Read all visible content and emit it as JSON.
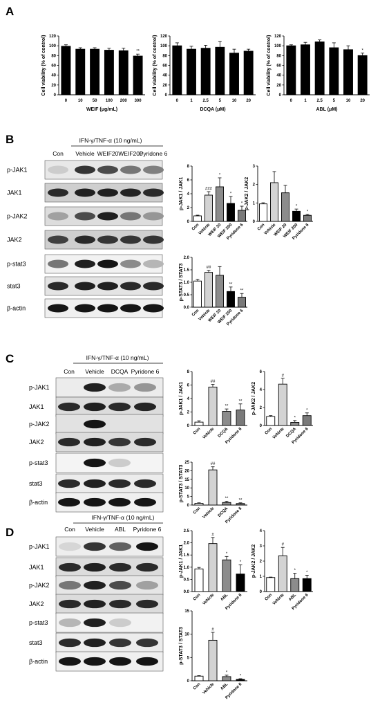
{
  "panels": {
    "A": {
      "label": "A"
    },
    "B": {
      "label": "B",
      "treatment": "IFN-γ/TNF-α (10 ng/mL)",
      "lanes": [
        "Con",
        "Vehicle",
        "WEIF20",
        "WEIF200",
        "Pyridone 6"
      ],
      "rows": [
        "p-JAK1",
        "JAK1",
        "p-JAK2",
        "JAK2",
        "p-stat3",
        "stat3",
        "β-actin"
      ]
    },
    "C": {
      "label": "C",
      "treatment": "IFN-γ/TNF-α (10 ng/mL)",
      "lanes": [
        "Con",
        "Vehicle",
        "DCQA",
        "Pyridone 6"
      ],
      "rows": [
        "p-JAK1",
        "JAK1",
        "p-JAK2",
        "JAK2",
        "p-stat3",
        "stat3",
        "β-actin"
      ]
    },
    "D": {
      "label": "D",
      "treatment": "IFN-γ/TNF-α (10 ng/mL)",
      "lanes": [
        "Con",
        "Vehicle",
        "ABL",
        "Pyridone 6"
      ],
      "rows": [
        "p-JAK1",
        "JAK1",
        "p-JAK2",
        "JAK2",
        "p-stat3",
        "stat3",
        "β-actin"
      ]
    }
  },
  "chart_data": [
    {
      "id": "A1",
      "type": "bar",
      "categories": [
        "0",
        "10",
        "50",
        "100",
        "200",
        "300"
      ],
      "values": [
        99,
        93,
        93,
        91,
        90,
        79
      ],
      "errors": [
        3,
        3,
        3,
        4,
        5,
        4
      ],
      "sig": [
        "",
        "",
        "",
        "",
        "",
        "**"
      ],
      "colors": [
        "#000",
        "#000",
        "#000",
        "#000",
        "#000",
        "#000"
      ],
      "xlabel": "WEIF (μg/mL)",
      "ylabel": "Cell viability (% of control)",
      "ylim": [
        0,
        120
      ],
      "yticks": [
        0,
        20,
        40,
        60,
        80,
        100,
        120
      ]
    },
    {
      "id": "A2",
      "type": "bar",
      "categories": [
        "0",
        "1",
        "2.5",
        "5",
        "10",
        "20"
      ],
      "values": [
        100,
        93,
        95,
        97,
        85,
        89
      ],
      "errors": [
        6,
        6,
        6,
        12,
        8,
        4
      ],
      "sig": [
        "",
        "",
        "",
        "",
        "",
        ""
      ],
      "colors": [
        "#000",
        "#000",
        "#000",
        "#000",
        "#000",
        "#000"
      ],
      "xlabel": "DCQA (μM)",
      "ylabel": "Cell viability (% of control)",
      "ylim": [
        0,
        120
      ],
      "yticks": [
        0,
        20,
        40,
        60,
        80,
        100,
        120
      ]
    },
    {
      "id": "A3",
      "type": "bar",
      "categories": [
        "0",
        "1",
        "2.5",
        "5",
        "10",
        "20"
      ],
      "values": [
        100,
        102,
        108,
        96,
        92,
        80
      ],
      "errors": [
        2,
        5,
        4,
        10,
        8,
        5
      ],
      "sig": [
        "",
        "",
        "",
        "",
        "",
        "*"
      ],
      "colors": [
        "#000",
        "#000",
        "#000",
        "#000",
        "#000",
        "#000"
      ],
      "xlabel": "ABL (μM)",
      "ylabel": "Cell viability (% of control)",
      "ylim": [
        0,
        120
      ],
      "yticks": [
        0,
        20,
        40,
        60,
        80,
        100,
        120
      ]
    },
    {
      "id": "B1",
      "type": "bar",
      "categories": [
        "Con",
        "Vehicle",
        "WEIF 20",
        "WEIF 200",
        "Pyridone 6"
      ],
      "values": [
        0.8,
        3.8,
        5.0,
        2.6,
        1.6
      ],
      "errors": [
        0.1,
        0.5,
        1.3,
        1.0,
        0.6
      ],
      "sig": [
        "",
        "###",
        "*",
        "*",
        "*"
      ],
      "colors": [
        "#fff",
        "#d3d3d3",
        "#8c8c8c",
        "#000",
        "#7a7a7a"
      ],
      "ylabel": "p-JAK1 / JAK1",
      "ylim": [
        0,
        8
      ],
      "yticks": [
        0,
        2,
        4,
        6,
        8
      ]
    },
    {
      "id": "B2",
      "type": "bar",
      "categories": [
        "Con",
        "Vehicle",
        "WEIF 20",
        "WEIF 200",
        "Pyridone 6"
      ],
      "values": [
        0.95,
        2.1,
        1.55,
        0.55,
        0.33
      ],
      "errors": [
        0.06,
        0.6,
        0.4,
        0.12,
        0.05
      ],
      "sig": [
        "",
        "",
        "",
        "*",
        "*"
      ],
      "colors": [
        "#fff",
        "#d3d3d3",
        "#8c8c8c",
        "#000",
        "#7a7a7a"
      ],
      "ylabel": "p-JAK2 / JAK2",
      "ylim": [
        0,
        3
      ],
      "yticks": [
        0,
        1,
        2,
        3
      ]
    },
    {
      "id": "B3",
      "type": "bar",
      "categories": [
        "Con",
        "Vehicle",
        "WEIF 20",
        "WEIF 200",
        "Pyridone 6"
      ],
      "values": [
        1.05,
        1.4,
        1.28,
        0.63,
        0.4
      ],
      "errors": [
        0.07,
        0.08,
        0.35,
        0.18,
        0.15
      ],
      "sig": [
        "",
        "##",
        "",
        "**",
        "**"
      ],
      "colors": [
        "#fff",
        "#d3d3d3",
        "#8c8c8c",
        "#000",
        "#7a7a7a"
      ],
      "ylabel": "p-STAT3 / STAT3",
      "ylim": [
        0,
        2.0
      ],
      "yticks": [
        0.0,
        0.5,
        1.0,
        1.5,
        2.0
      ]
    },
    {
      "id": "C1",
      "type": "bar",
      "categories": [
        "Con",
        "Vehicle",
        "DCQA",
        "Pyridone 6"
      ],
      "values": [
        0.5,
        5.7,
        2.1,
        2.3
      ],
      "errors": [
        0.2,
        0.4,
        0.35,
        0.9
      ],
      "sig": [
        "",
        "##",
        "**",
        "**"
      ],
      "colors": [
        "#fff",
        "#d3d3d3",
        "#8c8c8c",
        "#7a7a7a"
      ],
      "ylabel": "p-JAK1 / JAK1",
      "ylim": [
        0,
        8
      ],
      "yticks": [
        0,
        2,
        4,
        6,
        8
      ]
    },
    {
      "id": "C2",
      "type": "bar",
      "categories": [
        "Con",
        "Vehicle",
        "DCQA",
        "Pyridone 6"
      ],
      "values": [
        1.0,
        4.6,
        0.35,
        1.1
      ],
      "errors": [
        0.1,
        0.65,
        0.2,
        0.3
      ],
      "sig": [
        "",
        "#",
        "*",
        "*"
      ],
      "colors": [
        "#fff",
        "#d3d3d3",
        "#8c8c8c",
        "#7a7a7a"
      ],
      "ylabel": "p-JAK2 / JAK2",
      "ylim": [
        0,
        6
      ],
      "yticks": [
        0,
        2,
        4,
        6
      ]
    },
    {
      "id": "C3",
      "type": "bar",
      "categories": [
        "Con",
        "Vehicle",
        "DCQA",
        "Pyridone 6"
      ],
      "values": [
        1.0,
        20.5,
        1.5,
        0.9
      ],
      "errors": [
        0.3,
        1.8,
        0.7,
        0.4
      ],
      "sig": [
        "",
        "##",
        "**",
        "**"
      ],
      "colors": [
        "#fff",
        "#d3d3d3",
        "#8c8c8c",
        "#7a7a7a"
      ],
      "ylabel": "p-STAT3 / STAT3",
      "ylim": [
        0,
        25
      ],
      "yticks": [
        0,
        5,
        10,
        15,
        20,
        25
      ]
    },
    {
      "id": "D1",
      "type": "bar",
      "categories": [
        "Con",
        "Vehicle",
        "ABL",
        "Pyridone 6"
      ],
      "values": [
        0.93,
        1.97,
        1.3,
        0.72
      ],
      "errors": [
        0.06,
        0.25,
        0.14,
        0.38
      ],
      "sig": [
        "",
        "#",
        "*",
        "*"
      ],
      "colors": [
        "#fff",
        "#d3d3d3",
        "#8c8c8c",
        "#000"
      ],
      "ylabel": "p-JAK1 / JAK1",
      "ylim": [
        0,
        2.5
      ],
      "yticks": [
        0.0,
        0.5,
        1.0,
        1.5,
        2.0,
        2.5
      ]
    },
    {
      "id": "D2",
      "type": "bar",
      "categories": [
        "Con",
        "Vehicle",
        "ABL",
        "Pyridone 6"
      ],
      "values": [
        0.92,
        2.35,
        0.85,
        0.85
      ],
      "errors": [
        0.03,
        0.55,
        0.35,
        0.22
      ],
      "sig": [
        "",
        "#",
        "*",
        "*"
      ],
      "colors": [
        "#fff",
        "#d3d3d3",
        "#8c8c8c",
        "#000"
      ],
      "ylabel": "p-JAK2 / JAK2",
      "ylim": [
        0,
        4
      ],
      "yticks": [
        0,
        1,
        2,
        3,
        4
      ]
    },
    {
      "id": "D3",
      "type": "bar",
      "categories": [
        "Con",
        "Vehicle",
        "ABL",
        "Pyridone 6"
      ],
      "values": [
        1.0,
        8.7,
        0.9,
        0.3
      ],
      "errors": [
        0.1,
        1.7,
        0.3,
        0.15
      ],
      "sig": [
        "",
        "#",
        "*",
        "*"
      ],
      "colors": [
        "#fff",
        "#d3d3d3",
        "#8c8c8c",
        "#000"
      ],
      "ylabel": "p-STAT3 / STAT3",
      "ylim": [
        0,
        15
      ],
      "yticks": [
        0,
        5,
        10,
        15
      ]
    }
  ]
}
